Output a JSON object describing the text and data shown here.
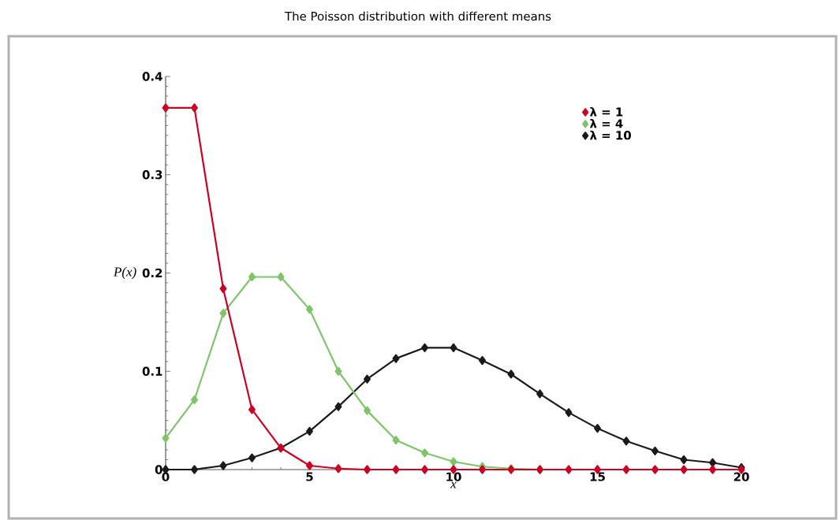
{
  "chart_data": {
    "type": "line",
    "title": "The Poisson distribution with different means",
    "xlabel": "x",
    "ylabel": "P(x)",
    "x": [
      0,
      1,
      2,
      3,
      4,
      5,
      6,
      7,
      8,
      9,
      10,
      11,
      12,
      13,
      14,
      15,
      16,
      17,
      18,
      19,
      20
    ],
    "series": [
      {
        "name": "λ = 1",
        "color": "#cc0022",
        "values": [
          0.368,
          0.368,
          0.184,
          0.061,
          0.022,
          0.004,
          0.001,
          0,
          0,
          0,
          0,
          0,
          0,
          0,
          0,
          0,
          0,
          0,
          0,
          0,
          0
        ]
      },
      {
        "name": "λ = 4",
        "color": "#7dc46b",
        "values": [
          0.032,
          0.071,
          0.159,
          0.196,
          0.196,
          0.163,
          0.1,
          0.06,
          0.03,
          0.017,
          0.008,
          0.003,
          0.001,
          0,
          null,
          null,
          null,
          null,
          null,
          null,
          null
        ]
      },
      {
        "name": "λ = 10",
        "color": "#1a1a1a",
        "values": [
          0,
          0,
          0.004,
          0.012,
          0.022,
          0.039,
          0.064,
          0.092,
          0.113,
          0.124,
          0.124,
          0.111,
          0.097,
          0.077,
          0.058,
          0.042,
          0.029,
          0.019,
          0.01,
          0.007,
          0.002
        ]
      }
    ],
    "xlim": [
      0,
      20
    ],
    "ylim": [
      0,
      0.4
    ],
    "xticks": [
      0,
      5,
      10,
      15,
      20
    ],
    "yticks": [
      0,
      0.1,
      0.2,
      0.3,
      0.4
    ],
    "legend": "top right",
    "marker": "diamond",
    "line_style": "solid",
    "grid": false
  }
}
